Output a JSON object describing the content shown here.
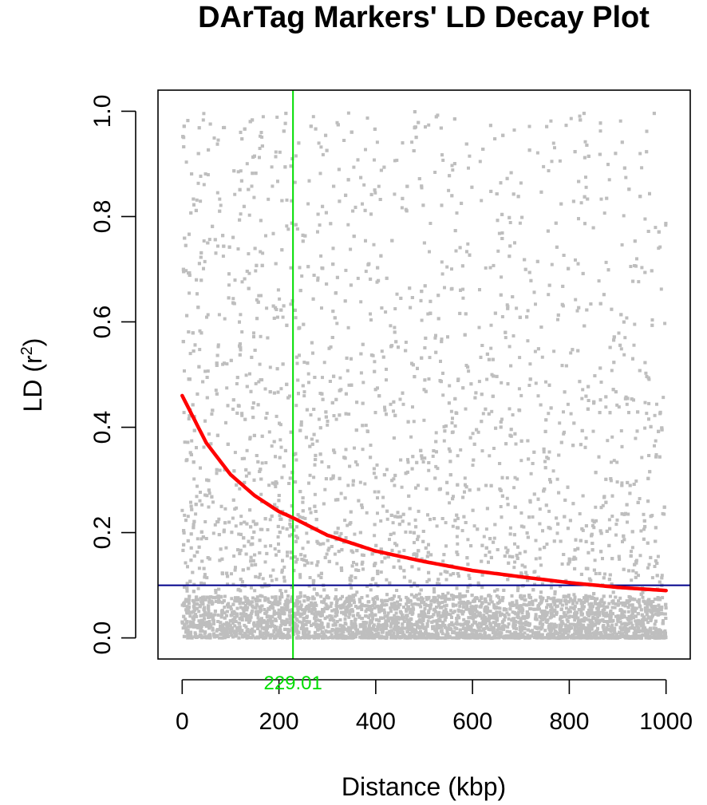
{
  "chart_data": {
    "type": "scatter",
    "title": "DArTag Markers' LD Decay Plot",
    "xlabel": "Distance (kbp)",
    "ylabel_base": "LD (r",
    "ylabel_sup": "2",
    "ylabel_close": ")",
    "xlim": [
      -50,
      1050
    ],
    "ylim": [
      -0.04,
      1.04
    ],
    "xticks": [
      0,
      200,
      400,
      600,
      800,
      1000
    ],
    "yticks": [
      0.0,
      0.2,
      0.4,
      0.6,
      0.8,
      1.0
    ],
    "xtick_labels": [
      "0",
      "200",
      "400",
      "600",
      "800",
      "1000"
    ],
    "ytick_labels": [
      "0.0",
      "0.2",
      "0.4",
      "0.6",
      "0.8",
      "1.0"
    ],
    "points": {
      "color": "#bebebe",
      "x_range": [
        0,
        1000
      ],
      "y_range": [
        0,
        1
      ],
      "note": "dense cloud of pairwise r2 values concentrated near 0, thinning toward 1"
    },
    "decay_curve": {
      "color": "#ff0000",
      "x": [
        0,
        50,
        100,
        150,
        200,
        229.01,
        300,
        400,
        500,
        600,
        700,
        800,
        900,
        1000
      ],
      "y": [
        0.46,
        0.37,
        0.31,
        0.27,
        0.24,
        0.228,
        0.195,
        0.165,
        0.145,
        0.128,
        0.116,
        0.105,
        0.096,
        0.09
      ]
    },
    "threshold_line": {
      "y": 0.1,
      "color": "#00008b"
    },
    "intercept_line": {
      "x": 229.01,
      "color": "#00dd00",
      "label": "229.01"
    }
  }
}
